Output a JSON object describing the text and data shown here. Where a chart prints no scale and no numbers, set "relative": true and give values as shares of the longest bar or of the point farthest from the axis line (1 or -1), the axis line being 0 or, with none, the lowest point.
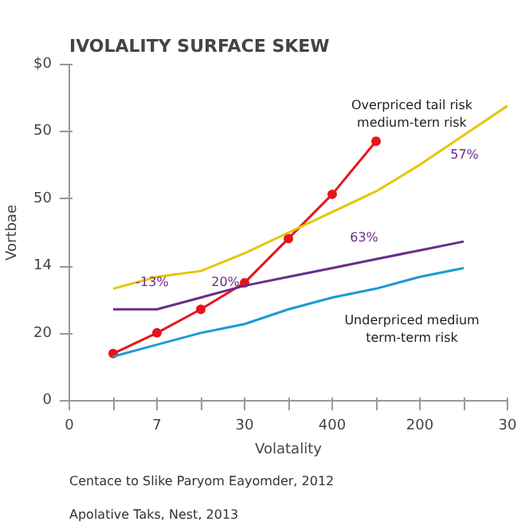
{
  "chart_data": {
    "type": "line",
    "title": "IVOLALITY SURFACE SKEW",
    "xlabel": "Volatality",
    "ylabel": "Vortbae",
    "relative": true,
    "categories": [
      "0",
      null,
      "7",
      null,
      "30",
      null,
      "400",
      null,
      "200",
      null,
      "30"
    ],
    "grid": false,
    "series": [
      {
        "color": "#e8141c",
        "marker": "circle",
        "values": [
          null,
          0.16,
          0.23,
          0.31,
          0.4,
          0.55,
          0.7,
          0.88,
          null,
          null,
          null
        ]
      },
      {
        "color": "#e6c600",
        "marker": "none",
        "values": [
          null,
          0.38,
          0.42,
          0.44,
          0.5,
          0.57,
          0.64,
          0.71,
          0.8,
          0.9,
          1.0
        ]
      },
      {
        "color": "#6a2c8a",
        "marker": "none",
        "values": [
          null,
          0.31,
          0.31,
          0.35,
          0.39,
          0.42,
          0.45,
          0.48,
          0.51,
          0.54,
          null
        ]
      },
      {
        "color": "#1a9ad6",
        "marker": "none",
        "values": [
          null,
          0.15,
          0.19,
          0.23,
          0.26,
          0.31,
          0.35,
          0.38,
          0.42,
          0.45,
          null
        ]
      }
    ],
    "annotations": [
      "0",
      "20",
      "14",
      "50",
      "50",
      "$0",
      "-13%",
      "20%",
      "63%",
      "57%",
      "Overpriced tail risk\nmedium-tern risk",
      "Underpriced medium\nterm-term risk",
      "Apolative Taks, Nest, 2013",
      "Centace to Slike Paryom Eayomder, 2012"
    ]
  }
}
